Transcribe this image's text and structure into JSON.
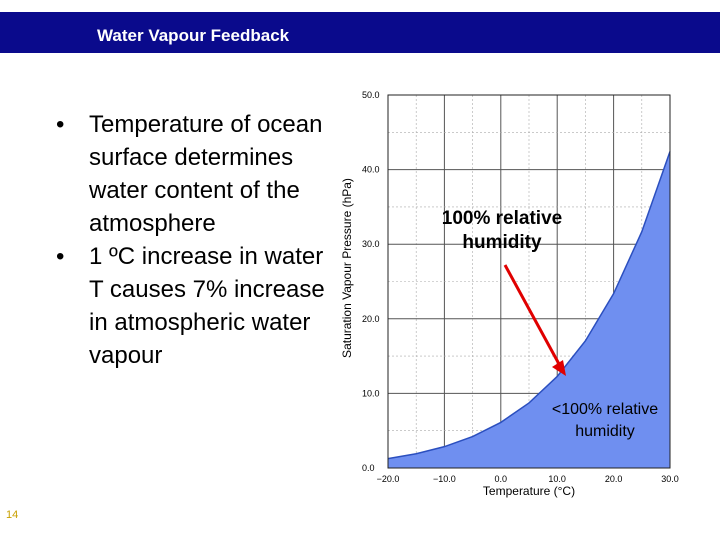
{
  "header": {
    "title": "Water Vapour Feedback"
  },
  "bullets": [
    "Temperature of ocean surface determines water content of the atmosphere",
    "1 ºC increase in water T causes 7% increase in atmospheric water vapour"
  ],
  "page_number": "14",
  "chart_data": {
    "type": "area",
    "title": "",
    "xlabel": "Temperature (°C)",
    "ylabel": "Saturation Vapour Pressure (hPa)",
    "xlim": [
      -20,
      30
    ],
    "ylim": [
      0,
      50
    ],
    "x_ticks": [
      -20,
      -10,
      0,
      10,
      20,
      30
    ],
    "x_tick_labels": [
      "−20.0",
      "−10.0",
      "0.0",
      "10.0",
      "20.0",
      "30.0"
    ],
    "y_ticks": [
      0,
      10,
      20,
      30,
      40,
      50
    ],
    "y_tick_labels": [
      "0.0",
      "10.0",
      "20.0",
      "30.0",
      "40.0",
      "50.0"
    ],
    "grid": true,
    "x": [
      -20,
      -15,
      -10,
      -5,
      0,
      5,
      10,
      15,
      20,
      25,
      30
    ],
    "y": [
      1.25,
      1.91,
      2.86,
      4.21,
      6.11,
      8.72,
      12.27,
      17.04,
      23.37,
      31.67,
      42.43
    ],
    "fill_color": "#6f8ff0",
    "line_color": "#2b4fbf",
    "annotations": [
      {
        "text": "100% relative humidity",
        "lines": [
          "100%  relative",
          "humidity"
        ]
      },
      {
        "text": "<100% relative humidity",
        "lines": [
          "<100% relative",
          "humidity"
        ]
      }
    ],
    "arrow_color": "#e00000"
  }
}
